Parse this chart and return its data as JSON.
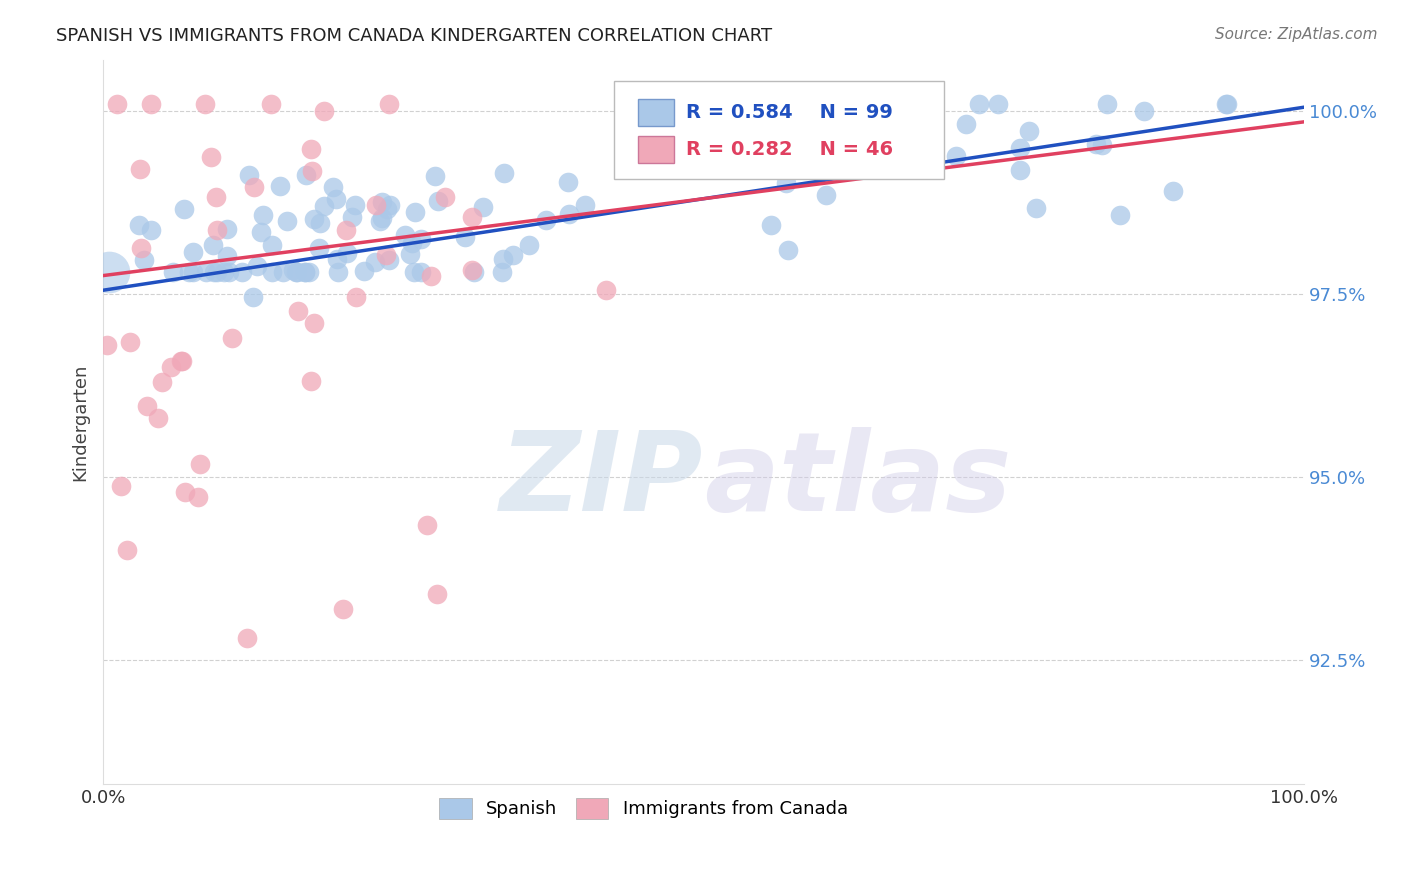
{
  "title": "SPANISH VS IMMIGRANTS FROM CANADA KINDERGARTEN CORRELATION CHART",
  "source_text": "Source: ZipAtlas.com",
  "ylabel": "Kindergarten",
  "xlim": [
    0.0,
    1.0
  ],
  "ylim": [
    0.908,
    1.007
  ],
  "yticks": [
    0.925,
    0.95,
    0.975,
    1.0
  ],
  "ytick_labels": [
    "92.5%",
    "95.0%",
    "97.5%",
    "100.0%"
  ],
  "xticks": [
    0.0,
    1.0
  ],
  "xtick_labels": [
    "0.0%",
    "100.0%"
  ],
  "R_spanish": 0.584,
  "N_spanish": 99,
  "R_canada": 0.282,
  "N_canada": 46,
  "color_spanish": "#aac8e8",
  "color_canada": "#f0a8b8",
  "line_color_spanish": "#2050c0",
  "line_color_canada": "#e04060",
  "grid_color": "#cccccc",
  "trendline_sp_x0": 0.0,
  "trendline_sp_y0": 0.9755,
  "trendline_sp_x1": 1.0,
  "trendline_sp_y1": 1.0005,
  "trendline_ca_x0": 0.0,
  "trendline_ca_y0": 0.9775,
  "trendline_ca_x1": 1.0,
  "trendline_ca_y1": 0.9985,
  "legend_sp_color": "#2050c0",
  "legend_ca_color": "#e04060",
  "legend_box_color": "#aac8e8",
  "legend_box_ca_color": "#f0a8b8"
}
